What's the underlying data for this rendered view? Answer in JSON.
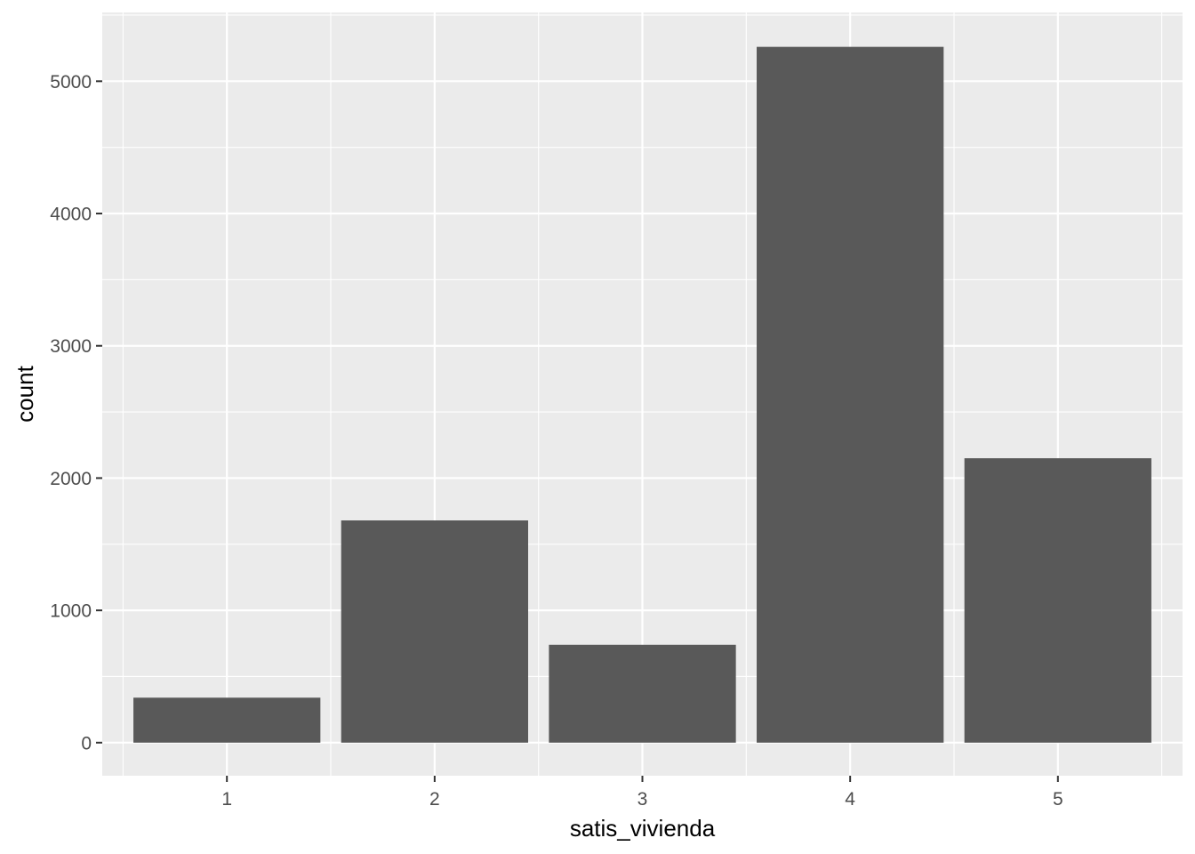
{
  "chart_data": {
    "type": "bar",
    "title": "",
    "xlabel": "satis_vivienda",
    "ylabel": "count",
    "categories": [
      "1",
      "2",
      "3",
      "4",
      "5"
    ],
    "values": [
      340,
      1680,
      740,
      5260,
      2150
    ],
    "ylim": [
      -250,
      5520
    ],
    "yticks": [
      0,
      1000,
      2000,
      3000,
      4000,
      5000
    ],
    "ytick_labels": [
      "0",
      "1000",
      "2000",
      "3000",
      "4000",
      "5000"
    ],
    "grid": true,
    "colors": {
      "panel": "#ebebeb",
      "grid": "#ffffff",
      "bar": "#595959",
      "tick": "#333333"
    }
  }
}
